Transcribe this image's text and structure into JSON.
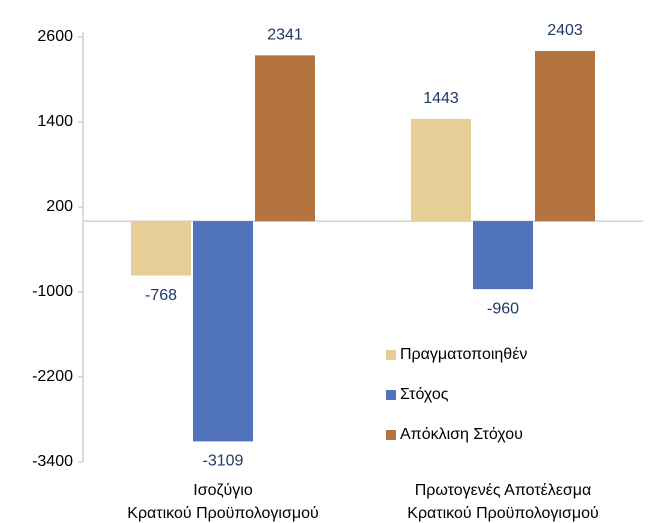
{
  "chart_data": {
    "type": "bar",
    "categories": [
      "Ισοζύγιο\nΚρατικού Προϋπολογισμού",
      "Πρωτογενές Αποτέλεσμα\nΚρατικού Προϋπολογισμού"
    ],
    "series": [
      {
        "name": "Πραγματοποιηθέν",
        "color": "#e6cf96",
        "values": [
          -768,
          1443
        ]
      },
      {
        "name": "Στόχος",
        "color": "#4f72b8",
        "values": [
          -3109,
          -960
        ]
      },
      {
        "name": "Απόκλιση Στόχου",
        "color": "#b3743f",
        "values": [
          2341,
          2403
        ]
      }
    ],
    "ylim": [
      -3400,
      2600
    ],
    "yticks": [
      -3400,
      -2200,
      -1000,
      200,
      1400,
      2600
    ],
    "legend": "right"
  }
}
